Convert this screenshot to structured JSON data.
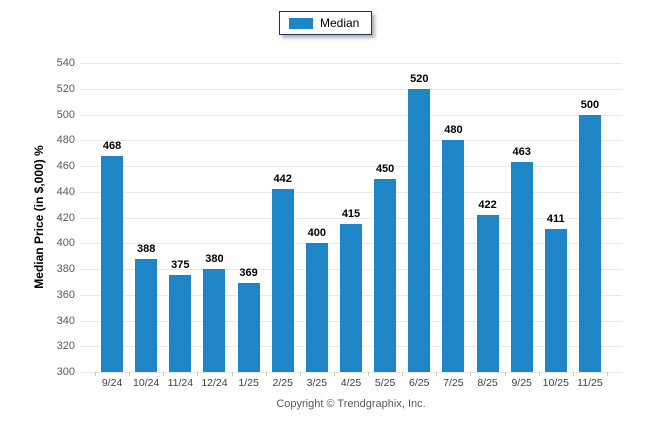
{
  "legend": {
    "label": "Median",
    "swatch_color": "#1e86c6"
  },
  "footer": {
    "copyright": "Copyright © Trendgraphix, Inc."
  },
  "chart_data": {
    "type": "bar",
    "title": "",
    "categories": [
      "9/24",
      "10/24",
      "11/24",
      "12/24",
      "1/25",
      "2/25",
      "3/25",
      "4/25",
      "5/25",
      "6/25",
      "7/25",
      "8/25",
      "9/25",
      "10/25",
      "11/25"
    ],
    "series": [
      {
        "name": "Median",
        "values": [
          468,
          388,
          375,
          380,
          369,
          442,
          400,
          415,
          450,
          520,
          480,
          422,
          463,
          411,
          500
        ]
      }
    ],
    "xlabel": "",
    "ylabel": "Median Price (in $,000) %",
    "ylim": [
      300,
      540
    ],
    "ytick_step": 20,
    "grid": "horizontal",
    "legend_position": "top-center",
    "bar_color": "#1e86c6",
    "gridline_color": "#e8e8e8",
    "value_labels": true
  }
}
